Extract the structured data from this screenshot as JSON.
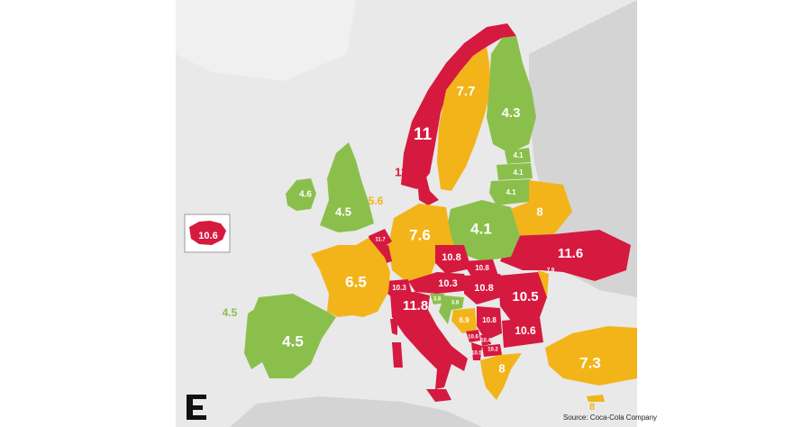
{
  "colors": {
    "red": "#d6193f",
    "orange": "#f3b41a",
    "green": "#8bbf4c",
    "land": "#d4d4d4",
    "sea": "#e9e9e9"
  },
  "labels": {
    "norway": "11",
    "sweden": "7.7",
    "finland": "4.3",
    "denmark": "11",
    "ireland": "4.6",
    "uk": "4.5",
    "north_sea": "5.6",
    "netherlands": "11.7",
    "belgium": "11.7",
    "germany": "7.6",
    "poland": "4.1",
    "estonia": "4.1",
    "latvia": "4.1",
    "lithuania": "4.1",
    "belarus": "8",
    "ukraine": "11.6",
    "czechia": "10.8",
    "slovakia": "10.8",
    "austria": "10.3",
    "hungary": "10.8",
    "switzerland": "10.3",
    "moldova": "7.9",
    "romania": "10.5",
    "france": "6.5",
    "italy": "11.8",
    "slovenia": "3.8",
    "croatia": "3.8",
    "bosnia": "6.9",
    "serbia": "10.8",
    "bulgaria": "10.6",
    "montenegro": "10.6",
    "kosovo": "10.4",
    "albania": "10.5",
    "macedonia": "10.2",
    "greece": "8",
    "turkey": "7.3",
    "cyprus": "8",
    "portugal": "4.5",
    "spain": "4.5",
    "iceland": "10.6"
  },
  "logo": {
    "letter": "E"
  },
  "source": "Source: Coca-Cola Company"
}
